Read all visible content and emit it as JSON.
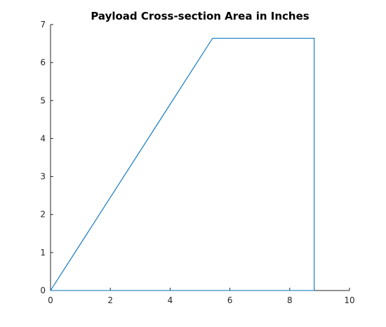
{
  "chart_data": {
    "type": "line",
    "title": "Payload Cross-section Area in Inches",
    "xlabel": "",
    "ylabel": "",
    "xlim": [
      0,
      10
    ],
    "ylim": [
      0,
      7
    ],
    "xticks": [
      0,
      2,
      4,
      6,
      8,
      10
    ],
    "yticks": [
      0,
      1,
      2,
      3,
      4,
      5,
      6,
      7
    ],
    "grid": false,
    "legend": "none",
    "series": [
      {
        "color": "#0072bd",
        "x": [
          0,
          5.42,
          8.82,
          8.82,
          0
        ],
        "y": [
          0,
          6.64,
          6.64,
          0,
          0
        ]
      }
    ]
  }
}
